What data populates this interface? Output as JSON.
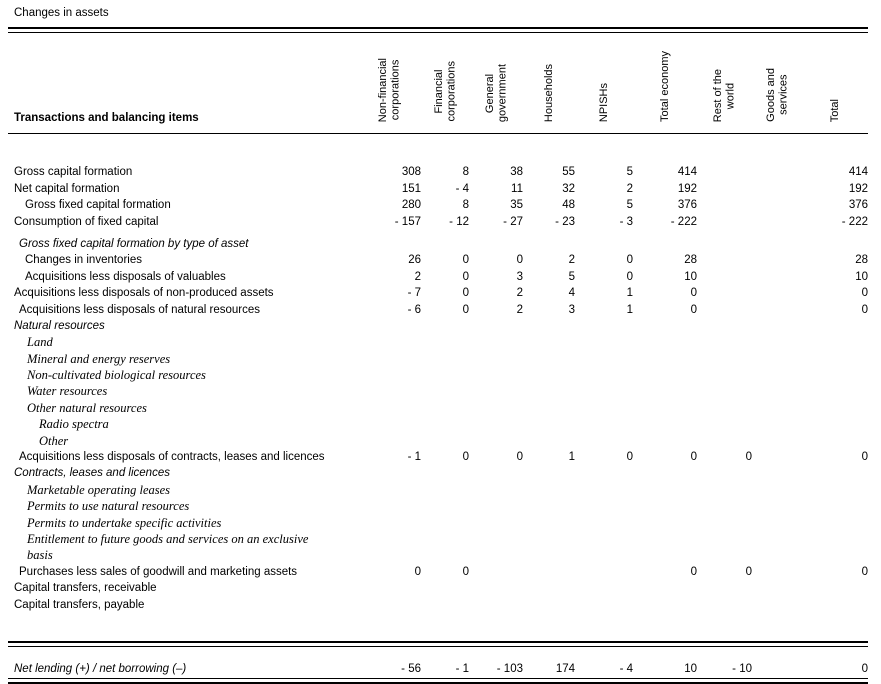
{
  "title": "Changes in assets",
  "colors": {
    "text": "#000000",
    "background": "#ffffff",
    "rule": "#000000"
  },
  "table": {
    "row_header": "Transactions and balancing items",
    "columns": [
      "Non-financial\ncorporations",
      "Financial\ncorporations",
      "General\ngovernment",
      "Households",
      "NPISHs",
      "Total economy",
      "Rest of the\nworld",
      "Goods and\nservices",
      "Total"
    ],
    "rows": [
      {
        "label": "Gross capital formation",
        "style": "sans",
        "indent": 0,
        "values": [
          "308",
          "8",
          "38",
          "55",
          "5",
          "414",
          "",
          "",
          "414"
        ]
      },
      {
        "label": "Net capital formation",
        "style": "sans",
        "indent": 0,
        "values": [
          "151",
          "- 4",
          "11",
          "32",
          "2",
          "192",
          "",
          "",
          "192"
        ]
      },
      {
        "label": "Gross fixed capital formation",
        "style": "sans",
        "indent": 1,
        "values": [
          "280",
          "8",
          "35",
          "48",
          "5",
          "376",
          "",
          "",
          "376"
        ]
      },
      {
        "label": "Consumption of fixed capital",
        "style": "sans",
        "indent": 0,
        "values": [
          "- 157",
          "- 12",
          "- 27",
          "- 23",
          "- 3",
          "- 222",
          "",
          "",
          "- 222"
        ]
      },
      {
        "label": "Gross fixed capital formation by type of asset",
        "style": "sans-italic",
        "indent": 0.5,
        "gap_before": true,
        "values": []
      },
      {
        "label": "Changes in inventories",
        "style": "sans",
        "indent": 1,
        "values": [
          "26",
          "0",
          "0",
          "2",
          "0",
          "28",
          "",
          "",
          "28"
        ]
      },
      {
        "label": "Acquisitions less disposals of valuables",
        "style": "sans",
        "indent": 1,
        "values": [
          "2",
          "0",
          "3",
          "5",
          "0",
          "10",
          "",
          "",
          "10"
        ]
      },
      {
        "label": "Acquisitions less disposals of non-produced assets",
        "style": "sans",
        "indent": 0,
        "values": [
          "- 7",
          "0",
          "2",
          "4",
          "1",
          "0",
          "",
          "",
          "0"
        ]
      },
      {
        "label": "Acquisitions less disposals of natural resources",
        "style": "sans",
        "indent": 0.5,
        "values": [
          "- 6",
          "0",
          "2",
          "3",
          "1",
          "0",
          "",
          "",
          "0"
        ]
      },
      {
        "label": "Natural resources",
        "style": "sans-italic",
        "indent": 0,
        "values": []
      },
      {
        "label": "Land",
        "style": "serif-italic",
        "indent": 2,
        "values": []
      },
      {
        "label": "Mineral and energy reserves",
        "style": "serif-italic",
        "indent": 2,
        "values": []
      },
      {
        "label": "Non-cultivated biological resources",
        "style": "serif-italic",
        "indent": 2,
        "values": []
      },
      {
        "label": "Water resources",
        "style": "serif-italic",
        "indent": 2,
        "values": []
      },
      {
        "label": "Other natural resources",
        "style": "serif-italic",
        "indent": 2,
        "values": []
      },
      {
        "label": "Radio spectra",
        "style": "serif-italic",
        "indent": 3,
        "values": []
      },
      {
        "label": "Other",
        "style": "serif-italic",
        "indent": 3,
        "values": []
      },
      {
        "label": "Acquisitions less disposals of contracts, leases and licences",
        "style": "sans",
        "indent": 0.5,
        "values": [
          "- 1",
          "0",
          "0",
          "1",
          "0",
          "0",
          "0",
          "",
          "0"
        ]
      },
      {
        "label": "Contracts, leases and licences",
        "style": "sans-italic",
        "indent": 0,
        "values": []
      },
      {
        "label": "Marketable operating leases",
        "style": "serif-italic",
        "indent": 2,
        "values": []
      },
      {
        "label": "Permits to use natural resources",
        "style": "serif-italic",
        "indent": 2,
        "values": []
      },
      {
        "label": "Permits to undertake specific activities",
        "style": "serif-italic",
        "indent": 2,
        "values": []
      },
      {
        "label": "Entitlement to future goods and services on an exclusive",
        "style": "serif-italic",
        "indent": 2,
        "values": []
      },
      {
        "label": "basis",
        "style": "serif-italic",
        "indent": 2,
        "values": []
      },
      {
        "label": "Purchases less sales of goodwill and marketing assets",
        "style": "sans",
        "indent": 0.5,
        "values": [
          "0",
          "0",
          "",
          "",
          "",
          "0",
          "0",
          "",
          "0"
        ]
      },
      {
        "label": "Capital transfers, receivable",
        "style": "sans",
        "indent": 0,
        "values": []
      },
      {
        "label": "Capital transfers, payable",
        "style": "sans",
        "indent": 0,
        "values": []
      }
    ],
    "footer": {
      "label": "Net lending (+) / net borrowing (–)",
      "values": [
        "- 56",
        "- 1",
        "- 103",
        "174",
        "- 4",
        "10",
        "- 10",
        "",
        "0"
      ]
    }
  }
}
